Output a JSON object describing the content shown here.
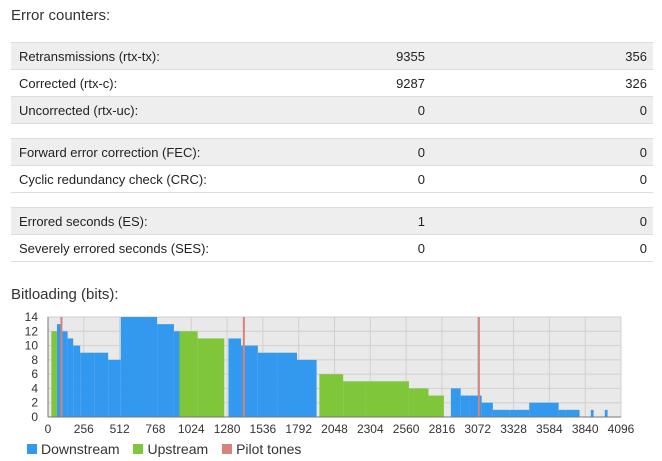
{
  "error_counters": {
    "title": "Error counters:",
    "groups": [
      [
        {
          "label": "Retransmissions (rtx-tx):",
          "down": "9355",
          "up": "356"
        },
        {
          "label": "Corrected (rtx-c):",
          "down": "9287",
          "up": "326"
        },
        {
          "label": "Uncorrected (rtx-uc):",
          "down": "0",
          "up": "0"
        }
      ],
      [
        {
          "label": "Forward error correction (FEC):",
          "down": "0",
          "up": "0"
        },
        {
          "label": "Cyclic redundancy check (CRC):",
          "down": "0",
          "up": "0"
        }
      ],
      [
        {
          "label": "Errored seconds (ES):",
          "down": "1",
          "up": "0"
        },
        {
          "label": "Severely errored seconds (SES):",
          "down": "0",
          "up": "0"
        }
      ]
    ]
  },
  "bitloading": {
    "title": "Bitloading (bits):",
    "legend": [
      {
        "name": "Downstream",
        "color": "#3399ee"
      },
      {
        "name": "Upstream",
        "color": "#80c63a"
      },
      {
        "name": "Pilot tones",
        "color": "#d4837d"
      }
    ]
  },
  "chart_data": {
    "type": "bar",
    "xlim": [
      0,
      4096
    ],
    "ylim": [
      0,
      14
    ],
    "xticks": [
      "0",
      "256",
      "512",
      "768",
      "1024",
      "1280",
      "1536",
      "1792",
      "2048",
      "2304",
      "2560",
      "2816",
      "3072",
      "3328",
      "3584",
      "3840",
      "4096"
    ],
    "yticks": [
      "0",
      "2",
      "4",
      "6",
      "8",
      "10",
      "12",
      "14"
    ],
    "grid": true,
    "legend_position": "bottom",
    "series": [
      {
        "name": "Downstream",
        "color": "#3399ee",
        "segments": [
          [
            64,
            100,
            13
          ],
          [
            100,
            140,
            12
          ],
          [
            140,
            180,
            11
          ],
          [
            180,
            230,
            10
          ],
          [
            230,
            330,
            9
          ],
          [
            330,
            430,
            9
          ],
          [
            430,
            520,
            8
          ],
          [
            520,
            780,
            14
          ],
          [
            780,
            900,
            13
          ],
          [
            900,
            940,
            12
          ],
          [
            1290,
            1380,
            11
          ],
          [
            1380,
            1500,
            10
          ],
          [
            1500,
            1640,
            9
          ],
          [
            1640,
            1780,
            9
          ],
          [
            1780,
            1920,
            8
          ],
          [
            2880,
            2950,
            4
          ],
          [
            2950,
            3010,
            3
          ],
          [
            3010,
            3100,
            3
          ],
          [
            3100,
            3180,
            2
          ],
          [
            3180,
            3300,
            1
          ],
          [
            3300,
            3440,
            1
          ],
          [
            3440,
            3650,
            2
          ],
          [
            3650,
            3700,
            1
          ],
          [
            3700,
            3800,
            1
          ],
          [
            3880,
            3900,
            1
          ],
          [
            3980,
            4000,
            1
          ]
        ]
      },
      {
        "name": "Upstream",
        "color": "#80c63a",
        "segments": [
          [
            24,
            64,
            12
          ],
          [
            940,
            1070,
            12
          ],
          [
            1070,
            1260,
            11
          ],
          [
            1940,
            2110,
            6
          ],
          [
            2110,
            2270,
            5
          ],
          [
            2270,
            2580,
            5
          ],
          [
            2580,
            2720,
            4
          ],
          [
            2720,
            2830,
            3
          ]
        ]
      },
      {
        "name": "Pilot tones",
        "color": "#d4837d",
        "x": [
          96,
          1400,
          3080
        ]
      }
    ]
  }
}
